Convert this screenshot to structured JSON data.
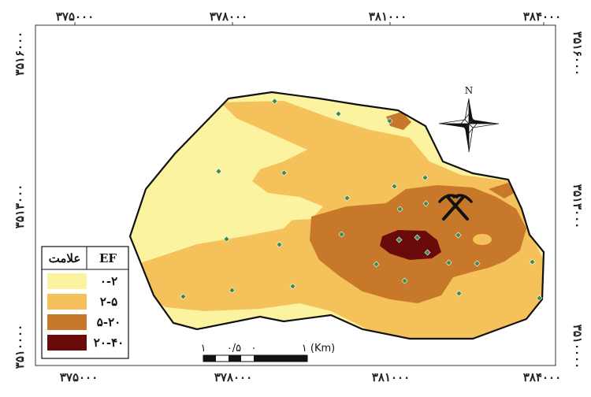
{
  "axis_labels": {
    "top": [
      "۳۷۵۰۰۰",
      "۳۷۸۰۰۰",
      "۳۸۱۰۰۰",
      "۳۸۴۰۰۰"
    ],
    "bottom": [
      "۳۷۵۰۰۰",
      "۳۷۸۰۰۰",
      "۳۸۱۰۰۰",
      "۳۸۴۰۰۰"
    ],
    "left": [
      "۳۵۱۶۰۰۰",
      "۳۵۱۳۰۰۰",
      "۳۵۱۰۰۰۰"
    ],
    "right": [
      "۳۵۱۶۰۰۰",
      "۳۵۱۳۰۰۰",
      "۳۵۱۰۰۰۰"
    ]
  },
  "north_arrow": {
    "label": "N"
  },
  "legend": {
    "header_symbol": "علامت",
    "header_ef": "EF",
    "classes": [
      {
        "range": "۰-۲",
        "color": "#fbf3a0"
      },
      {
        "range": "۲-۵",
        "color": "#f5c15a"
      },
      {
        "range": "۵-۲۰",
        "color": "#c8782a"
      },
      {
        "range": "۲۰-۴۰",
        "color": "#6b0a0a"
      }
    ]
  },
  "scale_bar": {
    "labels": [
      "۱",
      "۰/۵",
      "۰",
      "۱ (Km)"
    ]
  },
  "colors": {
    "class_0_2": "#fbf3a0",
    "class_2_5": "#f5c15a",
    "class_5_20": "#c8782a",
    "class_20_40": "#6b0a0a",
    "sample_point": "#3a8a4a"
  }
}
